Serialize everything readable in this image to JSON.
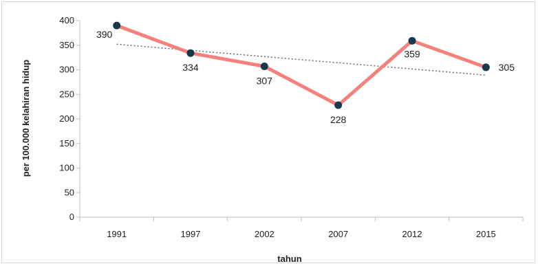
{
  "chart_data": {
    "type": "line",
    "xlabel": "tahun",
    "ylabel": "per 100.000 kelahiran hidup",
    "categories": [
      "1991",
      "1997",
      "2002",
      "2007",
      "2012",
      "2015"
    ],
    "series": [
      {
        "values": [
          390,
          334,
          307,
          228,
          359,
          305
        ],
        "color": "#f4817c"
      }
    ],
    "data_labels": [
      "390",
      "334",
      "307",
      "228",
      "359",
      "305"
    ],
    "trendline": {
      "style": "dotted",
      "color": "#5a6e7e",
      "start": 352,
      "end": 289
    },
    "marker_color": "#17394a",
    "ylim": [
      0,
      400
    ],
    "yticks": [
      "0",
      "50",
      "100",
      "150",
      "200",
      "250",
      "300",
      "350",
      "400"
    ],
    "grid": false,
    "legend": "none"
  }
}
